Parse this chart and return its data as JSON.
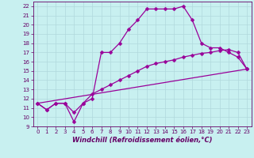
{
  "xlabel": "Windchill (Refroidissement éolien,°C)",
  "bg_color": "#c8f0f0",
  "grid_color": "#b0d8dc",
  "line_color": "#990099",
  "spine_color": "#660066",
  "tick_color": "#660066",
  "xlim": [
    -0.5,
    23.5
  ],
  "ylim": [
    9,
    22.5
  ],
  "xticks": [
    0,
    1,
    2,
    3,
    4,
    5,
    6,
    7,
    8,
    9,
    10,
    11,
    12,
    13,
    14,
    15,
    16,
    17,
    18,
    19,
    20,
    21,
    22,
    23
  ],
  "yticks": [
    9,
    10,
    11,
    12,
    13,
    14,
    15,
    16,
    17,
    18,
    19,
    20,
    21,
    22
  ],
  "line1_x": [
    0,
    1,
    2,
    3,
    4,
    5,
    6,
    7,
    8,
    9,
    10,
    11,
    12,
    13,
    14,
    15,
    16,
    17,
    18,
    19,
    20,
    21,
    22,
    23
  ],
  "line1_y": [
    11.5,
    10.8,
    11.5,
    11.5,
    9.5,
    11.5,
    12.0,
    17.0,
    17.0,
    18.0,
    19.5,
    20.5,
    21.7,
    21.7,
    21.7,
    21.7,
    22.0,
    20.5,
    18.0,
    17.5,
    17.5,
    17.0,
    16.5,
    15.2
  ],
  "line2_x": [
    0,
    1,
    2,
    3,
    4,
    5,
    6,
    7,
    8,
    9,
    10,
    11,
    12,
    13,
    14,
    15,
    16,
    17,
    18,
    19,
    20,
    21,
    22,
    23
  ],
  "line2_y": [
    11.5,
    10.8,
    11.5,
    11.5,
    10.5,
    11.5,
    12.5,
    13.0,
    13.5,
    14.0,
    14.5,
    15.0,
    15.5,
    15.8,
    16.0,
    16.2,
    16.5,
    16.7,
    16.9,
    17.0,
    17.2,
    17.3,
    17.0,
    15.2
  ],
  "line3_x": [
    0,
    23
  ],
  "line3_y": [
    11.5,
    15.2
  ]
}
